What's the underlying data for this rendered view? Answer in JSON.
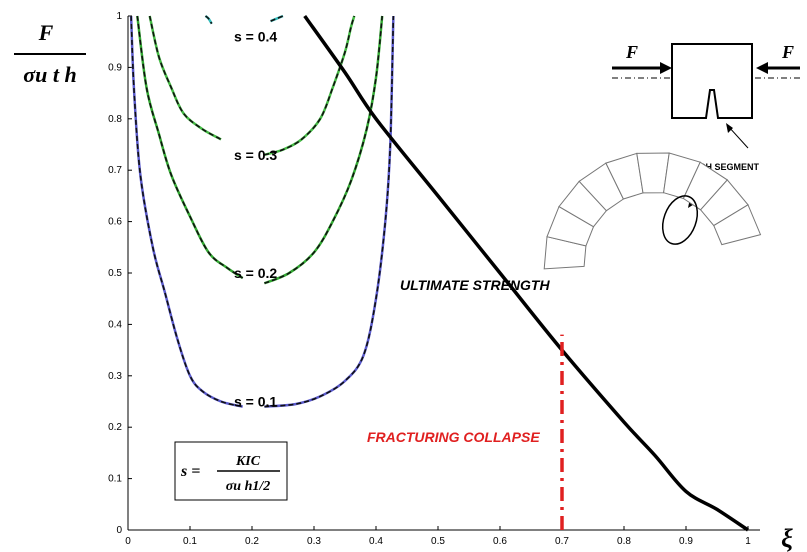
{
  "chart_data": {
    "type": "line",
    "xlim": [
      0,
      1
    ],
    "ylim": [
      0,
      1
    ],
    "x_ticks": [
      "0",
      "0.1",
      "0.2",
      "0.3",
      "0.4",
      "0.5",
      "0.6",
      "0.7",
      "0.8",
      "0.9",
      "1"
    ],
    "y_ticks": [
      "0",
      "0.1",
      "0.2",
      "0.3",
      "0.4",
      "0.5",
      "0.6",
      "0.7",
      "0.8",
      "0.9",
      "1"
    ],
    "y_axis_label": {
      "numerator": "F",
      "denominator": "σu t h"
    },
    "x_axis_label": "ξ",
    "series": [
      {
        "name": "s = 0.1",
        "color": "#5a5acd",
        "left": [
          [
            0.005,
            1.0
          ],
          [
            0.01,
            0.85
          ],
          [
            0.02,
            0.69
          ],
          [
            0.04,
            0.55
          ],
          [
            0.06,
            0.46
          ],
          [
            0.08,
            0.37
          ],
          [
            0.1,
            0.3
          ],
          [
            0.12,
            0.27
          ],
          [
            0.15,
            0.25
          ],
          [
            0.185,
            0.24
          ]
        ],
        "right": [
          [
            0.22,
            0.24
          ],
          [
            0.27,
            0.245
          ],
          [
            0.31,
            0.26
          ],
          [
            0.35,
            0.29
          ],
          [
            0.38,
            0.34
          ],
          [
            0.4,
            0.45
          ],
          [
            0.415,
            0.6
          ],
          [
            0.423,
            0.75
          ],
          [
            0.428,
            1.0
          ]
        ]
      },
      {
        "name": "s = 0.2",
        "color": "#33aa33",
        "left": [
          [
            0.015,
            1.0
          ],
          [
            0.03,
            0.86
          ],
          [
            0.05,
            0.77
          ],
          [
            0.07,
            0.69
          ],
          [
            0.1,
            0.61
          ],
          [
            0.13,
            0.54
          ],
          [
            0.16,
            0.51
          ],
          [
            0.185,
            0.49
          ]
        ],
        "right": [
          [
            0.22,
            0.48
          ],
          [
            0.26,
            0.5
          ],
          [
            0.3,
            0.54
          ],
          [
            0.33,
            0.6
          ],
          [
            0.36,
            0.68
          ],
          [
            0.385,
            0.78
          ],
          [
            0.4,
            0.88
          ],
          [
            0.41,
            1.0
          ]
        ]
      },
      {
        "name": "s = 0.3",
        "color": "#44bb44",
        "left": [
          [
            0.035,
            1.0
          ],
          [
            0.05,
            0.92
          ],
          [
            0.07,
            0.86
          ],
          [
            0.09,
            0.81
          ],
          [
            0.12,
            0.78
          ],
          [
            0.15,
            0.76
          ]
        ],
        "right": [
          [
            0.22,
            0.73
          ],
          [
            0.25,
            0.74
          ],
          [
            0.28,
            0.76
          ],
          [
            0.31,
            0.8
          ],
          [
            0.33,
            0.86
          ],
          [
            0.35,
            0.93
          ],
          [
            0.36,
            0.98
          ],
          [
            0.365,
            1.0
          ]
        ]
      },
      {
        "name": "s = 0.4",
        "color": "#33bbbb",
        "left": [
          [
            0.125,
            1.0
          ],
          [
            0.13,
            0.995
          ],
          [
            0.135,
            0.985
          ]
        ],
        "right": [
          [
            0.23,
            0.99
          ],
          [
            0.24,
            0.995
          ],
          [
            0.25,
            1.0
          ]
        ]
      }
    ],
    "ultimate_strength": {
      "label": "ULTIMATE STRENGTH",
      "color": "#000000",
      "points": [
        [
          0.285,
          1.0
        ],
        [
          0.35,
          0.89
        ],
        [
          0.4,
          0.8
        ],
        [
          0.5,
          0.65
        ],
        [
          0.6,
          0.5
        ],
        [
          0.7,
          0.35
        ],
        [
          0.8,
          0.21
        ],
        [
          0.85,
          0.145
        ],
        [
          0.9,
          0.075
        ],
        [
          0.95,
          0.04
        ],
        [
          1.0,
          0.0
        ]
      ]
    },
    "fracturing_collapse": {
      "label": "FRACTURING COLLAPSE",
      "x": 0.7,
      "y_range": [
        0,
        0.38
      ],
      "color": "#e02020"
    },
    "series_labels": [
      {
        "text": "s = 0.4",
        "x": 0.2,
        "y": 0.96
      },
      {
        "text": "s = 0.3",
        "x": 0.2,
        "y": 0.73
      },
      {
        "text": "s = 0.2",
        "x": 0.2,
        "y": 0.5
      },
      {
        "text": "s = 0.1",
        "x": 0.2,
        "y": 0.25
      }
    ],
    "formula": {
      "lhs": "s =",
      "numerator": "KIC",
      "denominator": "σu h1/2"
    },
    "inset": {
      "force_label": "F",
      "segment_label": "ARCH SEGMENT"
    }
  }
}
